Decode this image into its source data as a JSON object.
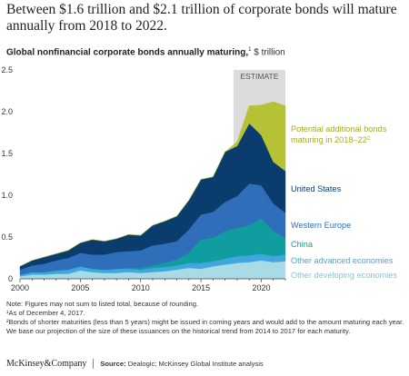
{
  "headline": "Between $1.6 trillion and $2.1 trillion of corporate bonds will mature annually from 2018 to 2022.",
  "subtitle": {
    "title": "Global nonfinancial corporate bonds annually maturing,",
    "footnote_mark": "1",
    "unit": "$ trillion"
  },
  "notes": {
    "note": "Note: Figures may not sum to listed total, because of rounding.",
    "fn1": "¹As of December 4, 2017.",
    "fn2": "²Bonds of shorter maturities (less than 5 years) might be issued in coming years and would add to the amount maturing each year. We base our projection of the size of these issuances on the historical trend from 2014 to 2017 for each maturity."
  },
  "footer": {
    "brand": "McKinsey&Company",
    "source_label": "Source:",
    "source_text": "Dealogic; McKinsey Global Institute analysis"
  },
  "chart_data": {
    "type": "area",
    "stacked": true,
    "title": "Global nonfinancial corporate bonds annually maturing",
    "ylabel": "$ trillion",
    "xlim": [
      2000,
      2022
    ],
    "ylim": [
      0,
      2.5
    ],
    "x_ticks": [
      2000,
      2005,
      2010,
      2015,
      2020
    ],
    "y_ticks": [
      "0",
      "0.5",
      "1.0",
      "1.5",
      "2.0",
      "2.5"
    ],
    "estimate_region": {
      "from": 2017.7,
      "to": 2022,
      "label": "ESTIMATE"
    },
    "x": [
      2000,
      2001,
      2002,
      2003,
      2004,
      2005,
      2006,
      2007,
      2008,
      2009,
      2010,
      2011,
      2012,
      2013,
      2014,
      2015,
      2016,
      2017,
      2018,
      2019,
      2020,
      2021,
      2022
    ],
    "series": [
      {
        "name": "Other developing economies",
        "color": "#a9dbe6",
        "values": [
          0.03,
          0.05,
          0.05,
          0.06,
          0.06,
          0.1,
          0.08,
          0.07,
          0.07,
          0.08,
          0.07,
          0.08,
          0.09,
          0.11,
          0.13,
          0.12,
          0.15,
          0.17,
          0.19,
          0.2,
          0.22,
          0.2,
          0.21
        ]
      },
      {
        "name": "Other advanced economies",
        "color": "#3fa7dd",
        "values": [
          0.02,
          0.03,
          0.03,
          0.04,
          0.05,
          0.05,
          0.04,
          0.04,
          0.05,
          0.04,
          0.04,
          0.05,
          0.05,
          0.05,
          0.06,
          0.07,
          0.06,
          0.07,
          0.08,
          0.08,
          0.08,
          0.07,
          0.08
        ]
      },
      {
        "name": "China",
        "color": "#0f9d9f",
        "values": [
          0.0,
          0.0,
          0.0,
          0.0,
          0.0,
          0.0,
          0.0,
          0.0,
          0.0,
          0.01,
          0.02,
          0.03,
          0.05,
          0.07,
          0.12,
          0.28,
          0.28,
          0.33,
          0.34,
          0.36,
          0.42,
          0.3,
          0.2
        ]
      },
      {
        "name": "Western Europe",
        "color": "#2f6fba",
        "values": [
          0.06,
          0.08,
          0.1,
          0.12,
          0.14,
          0.16,
          0.17,
          0.18,
          0.2,
          0.2,
          0.21,
          0.24,
          0.23,
          0.22,
          0.28,
          0.3,
          0.31,
          0.35,
          0.38,
          0.5,
          0.4,
          0.33,
          0.3
        ]
      },
      {
        "name": "United States",
        "color": "#0b3c6e",
        "values": [
          0.04,
          0.06,
          0.08,
          0.08,
          0.09,
          0.12,
          0.18,
          0.16,
          0.16,
          0.2,
          0.18,
          0.24,
          0.27,
          0.3,
          0.35,
          0.42,
          0.42,
          0.6,
          0.6,
          0.72,
          0.6,
          0.5,
          0.5
        ]
      },
      {
        "name": "Potential additional bonds maturing in 2018–22",
        "footnote_mark": "2",
        "color": "#b6c234",
        "values": [
          0,
          0,
          0,
          0,
          0,
          0,
          0,
          0,
          0,
          0,
          0,
          0,
          0,
          0,
          0,
          0,
          0,
          0,
          0.05,
          0.21,
          0.36,
          0.72,
          0.78
        ]
      }
    ]
  }
}
